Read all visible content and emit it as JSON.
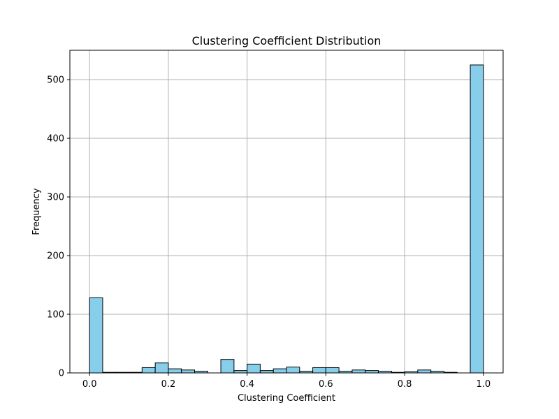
{
  "chart_data": {
    "type": "bar",
    "title": "Clustering Coefficient Distribution",
    "xlabel": "Clustering Coefficient",
    "ylabel": "Frequency",
    "xlim": [
      -0.05,
      1.05
    ],
    "ylim": [
      0,
      550
    ],
    "x_ticks": [
      0.0,
      0.2,
      0.4,
      0.6,
      0.8,
      1.0
    ],
    "x_tick_labels": [
      "0.0",
      "0.2",
      "0.4",
      "0.6",
      "0.8",
      "1.0"
    ],
    "y_ticks": [
      0,
      100,
      200,
      300,
      400,
      500
    ],
    "y_tick_labels": [
      "0",
      "100",
      "200",
      "300",
      "400",
      "500"
    ],
    "grid": true,
    "bar_color": "#87CEEB",
    "edge_color": "#000000",
    "bin_edges": [
      0.0,
      0.0333,
      0.0667,
      0.1,
      0.1333,
      0.1667,
      0.2,
      0.2333,
      0.2667,
      0.3,
      0.3333,
      0.3667,
      0.4,
      0.4333,
      0.4667,
      0.5,
      0.5333,
      0.5667,
      0.6,
      0.6333,
      0.6667,
      0.7,
      0.7333,
      0.7667,
      0.8,
      0.8333,
      0.8667,
      0.9,
      0.9333,
      0.9667,
      1.0
    ],
    "values": [
      128,
      1,
      1,
      1,
      9,
      17,
      7,
      5,
      3,
      0,
      23,
      4,
      15,
      4,
      7,
      10,
      3,
      9,
      9,
      3,
      5,
      4,
      3,
      1,
      2,
      5,
      3,
      1,
      0,
      525
    ]
  }
}
